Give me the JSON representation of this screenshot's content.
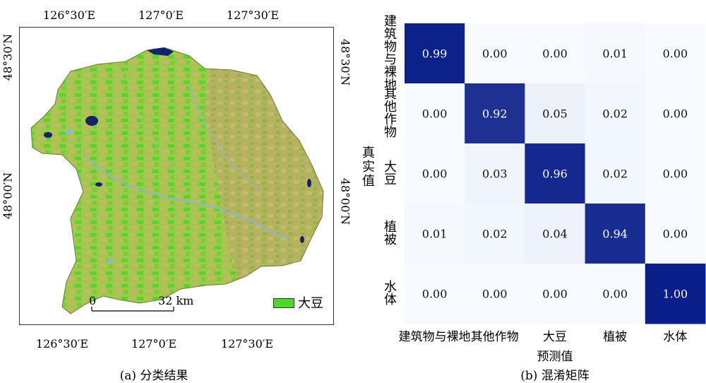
{
  "map": {
    "top_lon_ticks": [
      "126°30′E",
      "127°0′E",
      "127°30′E"
    ],
    "bottom_lon_ticks": [
      "126°30′E",
      "127°0′E",
      "127°30′E"
    ],
    "left_lat_ticks": [
      "48°30′N",
      "48°00′N"
    ],
    "right_lat_ticks": [
      "48°30′N",
      "48°00′N"
    ],
    "scale_zero": "0",
    "scale_label": "32 km",
    "legend_label": "大豆",
    "legend_color": "#4fd62a",
    "caption": "(a) 分类结果"
  },
  "chart_data": {
    "type": "heatmap",
    "ylabel": "真实值",
    "xlabel": "预测值",
    "categories": [
      "建筑物与裸地",
      "其他作物",
      "大豆",
      "植被",
      "水体"
    ],
    "y_tick_labels": [
      "建筑物与裸地",
      "其他作物",
      "大豆",
      "植被",
      "水体"
    ],
    "matrix": [
      [
        0.99,
        0.0,
        0.0,
        0.01,
        0.0
      ],
      [
        0.0,
        0.92,
        0.05,
        0.02,
        0.0
      ],
      [
        0.0,
        0.03,
        0.96,
        0.02,
        0.0
      ],
      [
        0.01,
        0.02,
        0.04,
        0.94,
        0.0
      ],
      [
        0.0,
        0.0,
        0.0,
        0.0,
        1.0
      ]
    ],
    "value_labels": [
      [
        "0.99",
        "0.00",
        "0.00",
        "0.01",
        "0.00"
      ],
      [
        "0.00",
        "0.92",
        "0.05",
        "0.02",
        "0.00"
      ],
      [
        "0.00",
        "0.03",
        "0.96",
        "0.02",
        "0.00"
      ],
      [
        "0.01",
        "0.02",
        "0.04",
        "0.94",
        "0.00"
      ],
      [
        "0.00",
        "0.00",
        "0.00",
        "0.00",
        "1.00"
      ]
    ],
    "colormap": [
      "#f7fbff",
      "#0b1f8a"
    ],
    "caption": "(b) 混淆矩阵"
  }
}
